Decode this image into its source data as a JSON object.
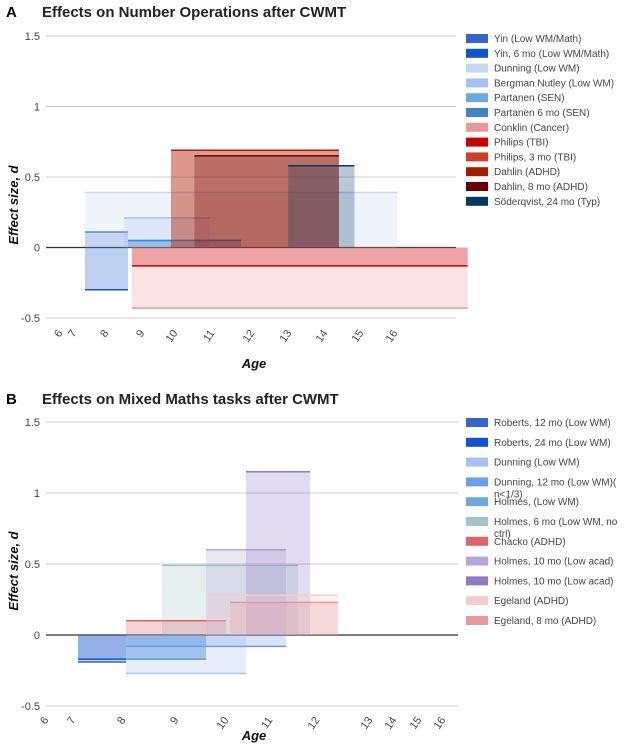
{
  "chart_data": [
    {
      "panel": "A",
      "type": "area",
      "title": "Effects on Number Operations after CWMT",
      "xlabel": "Age",
      "ylabel": "Effect size, d",
      "xlim": [
        6,
        16.5
      ],
      "ylim": [
        -0.5,
        1.5
      ],
      "yticks": [
        "1.5",
        "1",
        "0.5",
        "0",
        "-0.5"
      ],
      "xticks": [
        "6",
        "7",
        "8",
        "9",
        "10",
        "11",
        "12",
        "13",
        "14",
        "15",
        "16"
      ],
      "series": [
        {
          "name": "Yin (Low WM/Math)",
          "color": "#3366cc",
          "x_from": 7,
          "x_to": 8.1,
          "value": 0.11
        },
        {
          "name": "Yin, 6 mo (Low WM/Math)",
          "color": "#1155cc",
          "x_from": 7,
          "x_to": 8.1,
          "value": -0.3
        },
        {
          "name": "Dunning (Low WM)",
          "color": "#c6d9f1",
          "x_from": 7,
          "x_to": 15,
          "value": 0.39
        },
        {
          "name": "Bergman Nutley (Low WM)",
          "color": "#a4c2f4",
          "x_from": 8,
          "x_to": 10.2,
          "value": 0.21
        },
        {
          "name": "Partanen (SEN)",
          "color": "#6fa8dc",
          "x_from": 8.1,
          "x_to": 11,
          "value": 0.05
        },
        {
          "name": "Partanen 6 mo (SEN)",
          "color": "#3d85c6",
          "x_from": 8.1,
          "x_to": 11,
          "value": 0.05
        },
        {
          "name": "Conklin (Cancer)",
          "color": "#ea9999",
          "x_from": 8.2,
          "x_to": 16.8,
          "value": -0.43
        },
        {
          "name": "Philips (TBI)",
          "color": "#cc0000",
          "x_from": 8.2,
          "x_to": 16.8,
          "value": -0.13
        },
        {
          "name": "Philips, 3 mo (TBI)",
          "color": "#cc4125",
          "x_from": 9.2,
          "x_to": 13.5,
          "value": 0.69
        },
        {
          "name": "Dahlin (ADHD)",
          "color": "#a61c00",
          "x_from": 9.2,
          "x_to": 13.5,
          "value": 0.69
        },
        {
          "name": "Dahlin, 8 mo (ADHD)",
          "color": "#660000",
          "x_from": 9.8,
          "x_to": 13.5,
          "value": 0.65
        },
        {
          "name": "Söderqvist, 24 mo (Typ)",
          "color": "#073763",
          "x_from": 12.2,
          "x_to": 13.9,
          "value": 0.58
        }
      ]
    },
    {
      "panel": "B",
      "type": "area",
      "title": "Effects on Mixed Maths tasks after CWMT",
      "xlabel": "Age",
      "ylabel": "Effect size, d",
      "xlim": [
        6,
        16.3
      ],
      "ylim": [
        -0.5,
        1.5
      ],
      "yticks": [
        "1.5",
        "1",
        "0.5",
        "0",
        "-0.5"
      ],
      "xticks": [
        "6",
        "7",
        "8",
        "9",
        "10",
        "11",
        "12",
        "13",
        "14",
        "15",
        "16"
      ],
      "series": [
        {
          "name": "Roberts, 12 mo (Low WM)",
          "color": "#3366cc",
          "x_from": 6.8,
          "x_to": 8,
          "value": -0.19
        },
        {
          "name": "Roberts, 24 mo (Low WM)",
          "color": "#1155cc",
          "x_from": 6.8,
          "x_to": 10,
          "value": -0.17
        },
        {
          "name": "Dunning (Low WM)",
          "color": "#a4c2f4",
          "x_from": 8,
          "x_to": 11,
          "value": -0.27
        },
        {
          "name": "Dunning, 12 mo (Low WM)( n<1/3)",
          "color": "#6d9eeb",
          "x_from": 8,
          "x_to": 12,
          "value": -0.08
        },
        {
          "name": "Holmes, (Low WM)",
          "color": "#6fa8dc",
          "x_from": 8,
          "x_to": 10,
          "value": -0.17
        },
        {
          "name": "Holmes, 6 mo (Low WM, no ctrl)",
          "color": "#a2c4c9",
          "x_from": 8.9,
          "x_to": 12.3,
          "value": 0.49
        },
        {
          "name": "Chacko (ADHD)",
          "color": "#e06666",
          "x_from": 8,
          "x_to": 10.5,
          "value": 0.1
        },
        {
          "name": "Holmes, 10 mo (Low acad)",
          "color": "#b4a7d6",
          "x_from": 10,
          "x_to": 12,
          "value": 0.6
        },
        {
          "name": "Holmes, 10 mo (Low acad)",
          "color": "#8e7cc3",
          "x_from": 11,
          "x_to": 12.6,
          "value": 1.15
        },
        {
          "name": "Egeland (ADHD)",
          "color": "#f4cccc",
          "x_from": 10,
          "x_to": 13.3,
          "value": 0.28
        },
        {
          "name": "Egeland, 8 mo (ADHD)",
          "color": "#ea9999",
          "x_from": 10.6,
          "x_to": 13.3,
          "value": 0.23
        }
      ]
    }
  ]
}
